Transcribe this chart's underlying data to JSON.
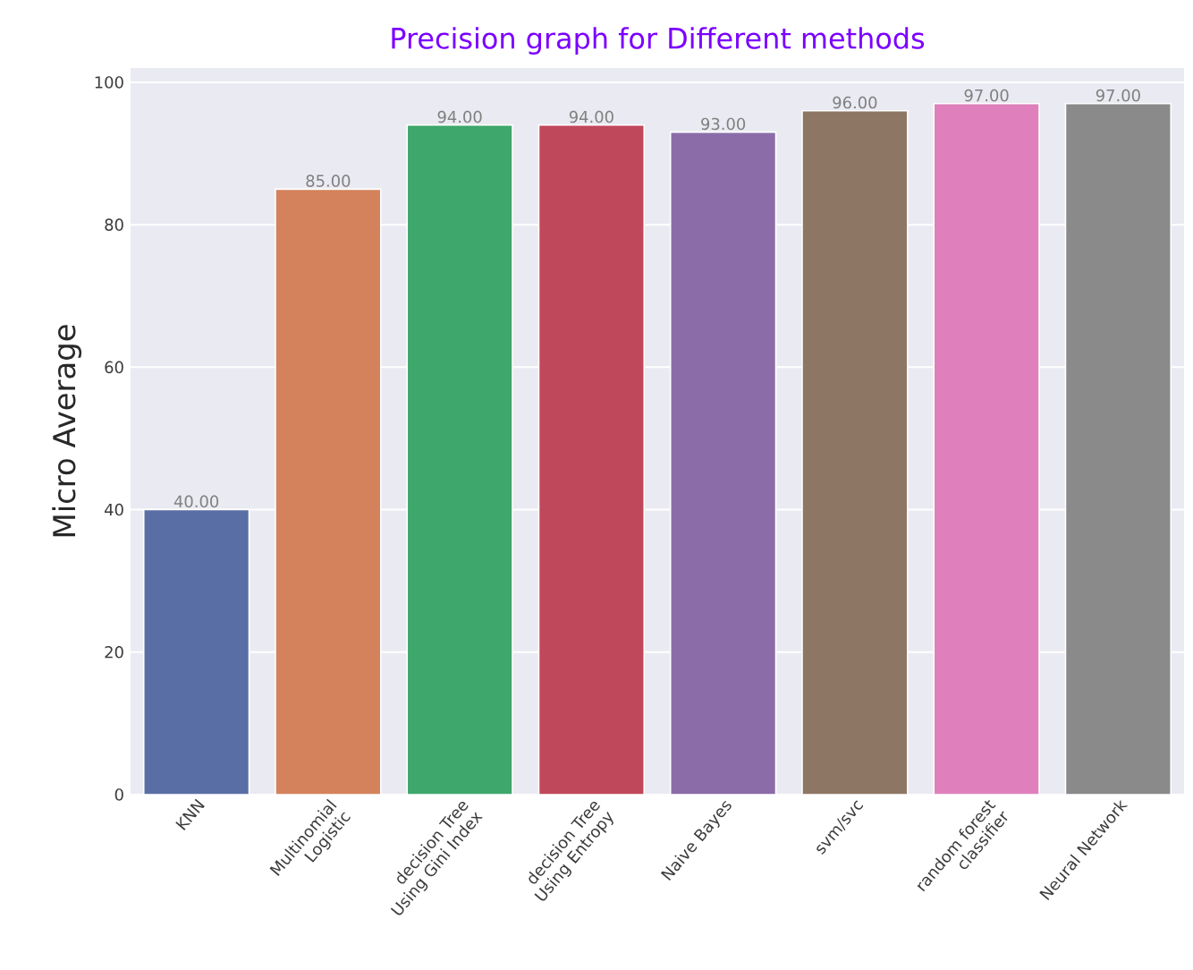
{
  "chart_data": {
    "type": "bar",
    "title": "Precision graph for Different methods",
    "ylabel": "Micro Average",
    "categories": [
      "KNN",
      "Multinomial Logistic",
      "decision Tree Using Gini Index",
      "decision Tree Using Entropy",
      "Naive Bayes",
      "svm/svc",
      "random forest classifier",
      "Neural Network"
    ],
    "values": [
      40,
      85,
      94,
      94,
      93,
      96,
      97,
      97
    ],
    "value_labels": [
      "40.00",
      "85.00",
      "94.00",
      "94.00",
      "93.00",
      "96.00",
      "97.00",
      "97.00"
    ],
    "colors": [
      "#5a6ea6",
      "#d3825b",
      "#3ea76b",
      "#c0485b",
      "#8b6ca8",
      "#8e7664",
      "#df80bc",
      "#8a8a8a"
    ],
    "ylim": [
      0,
      102
    ],
    "yticks": [
      0,
      20,
      40,
      60,
      80,
      100
    ],
    "grid": "y"
  }
}
